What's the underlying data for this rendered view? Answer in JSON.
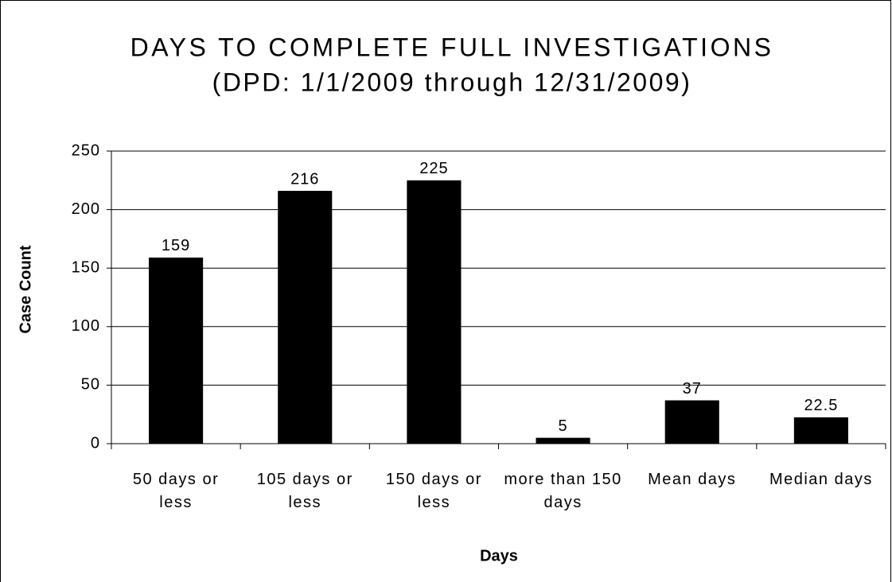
{
  "chart_data": {
    "type": "bar",
    "title": "DAYS TO COMPLETE FULL INVESTIGATIONS",
    "subtitle": "(DPD: 1/1/2009 through 12/31/2009)",
    "x_label": "Days",
    "y_label": "Case Count",
    "categories": [
      "50 days or less",
      "105 days or less",
      "150 days or less",
      "more than 150 days",
      "Mean days",
      "Median days"
    ],
    "values": [
      159,
      216,
      225,
      5,
      37,
      22.5
    ],
    "color": "#000000",
    "ylim": [
      0,
      250
    ],
    "yticks": [
      0,
      50,
      100,
      150,
      200,
      250
    ],
    "grid": true
  }
}
